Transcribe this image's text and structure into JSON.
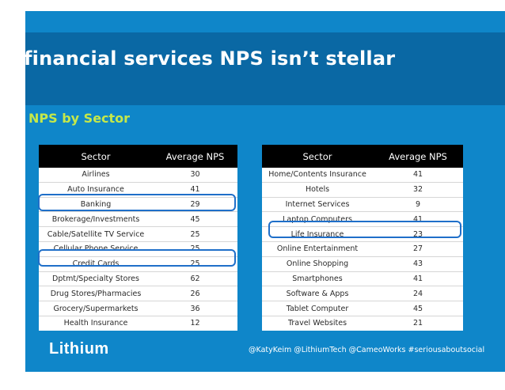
{
  "slide": {
    "title": "financial services NPS isn’t stellar",
    "subtitle": "NPS by Sector",
    "logo_text": "Lithium",
    "footer_text": "@KatyKeim @LithiumTech @CameoWorks #seriousaboutsocial"
  },
  "colors": {
    "slide_bg": "#0f86c9",
    "title_band": "#0a68a4",
    "subtitle": "#c4e84a",
    "highlight_border": "#1f6fc9",
    "header_bg": "#000000"
  },
  "left_table": {
    "headers": [
      "Sector",
      "Average NPS"
    ],
    "rows": [
      [
        "Airlines",
        "30"
      ],
      [
        "Auto Insurance",
        "41"
      ],
      [
        "Banking",
        "29"
      ],
      [
        "Brokerage/Investments",
        "45"
      ],
      [
        "Cable/Satellite TV Service",
        "25"
      ],
      [
        "Cellular Phone Service",
        "25"
      ],
      [
        "Credit Cards",
        "25"
      ],
      [
        "Dptmt/Specialty Stores",
        "62"
      ],
      [
        "Drug Stores/Pharmacies",
        "26"
      ],
      [
        "Grocery/Supermarkets",
        "36"
      ],
      [
        "Health Insurance",
        "12"
      ]
    ]
  },
  "right_table": {
    "headers": [
      "Sector",
      "Average NPS"
    ],
    "rows": [
      [
        "Home/Contents Insurance",
        "41"
      ],
      [
        "Hotels",
        "32"
      ],
      [
        "Internet Services",
        "9"
      ],
      [
        "Laptop Computers",
        "41"
      ],
      [
        "Life Insurance",
        "23"
      ],
      [
        "Online Entertainment",
        "27"
      ],
      [
        "Online Shopping",
        "43"
      ],
      [
        "Smartphones",
        "41"
      ],
      [
        "Software & Apps",
        "24"
      ],
      [
        "Tablet Computer",
        "45"
      ],
      [
        "Travel Websites",
        "21"
      ]
    ]
  }
}
